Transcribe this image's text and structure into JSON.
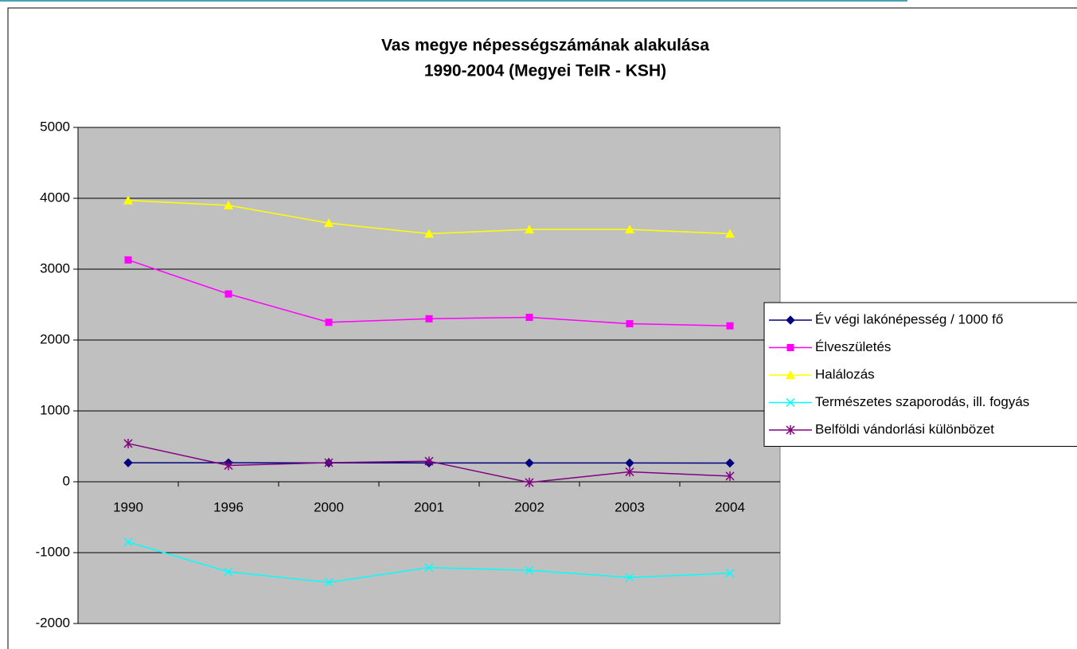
{
  "chart_data": {
    "type": "line",
    "title": [
      "Vas megye népességszámának alakulása",
      "1990-2004 (Megyei TeIR - KSH)"
    ],
    "categories": [
      "1990",
      "1996",
      "2000",
      "2001",
      "2002",
      "2003",
      "2004"
    ],
    "series": [
      {
        "name": "Év végi lakónépesség / 1000 fő",
        "color": "#000080",
        "marker": "diamond",
        "values": [
          268,
          268,
          267,
          266,
          265,
          265,
          264
        ]
      },
      {
        "name": "Élveszületés",
        "color": "#ff00ff",
        "marker": "square",
        "values": [
          3130,
          2650,
          2250,
          2300,
          2320,
          2230,
          2200
        ]
      },
      {
        "name": "Halálozás",
        "color": "#ffff00",
        "marker": "triangle",
        "values": [
          3970,
          3900,
          3650,
          3500,
          3560,
          3560,
          3500
        ]
      },
      {
        "name": "Természetes szaporodás, ill. fogyás",
        "color": "#00ffff",
        "marker": "x",
        "values": [
          -850,
          -1270,
          -1420,
          -1210,
          -1250,
          -1350,
          -1290
        ]
      },
      {
        "name": "Belföldi vándorlási különbözet",
        "color": "#800080",
        "marker": "star",
        "values": [
          540,
          230,
          270,
          290,
          -10,
          140,
          80
        ]
      }
    ],
    "ylim": [
      -2000,
      5000
    ],
    "yticks": [
      -2000,
      -1000,
      0,
      1000,
      2000,
      3000,
      4000,
      5000
    ],
    "grid": true,
    "legend": "right",
    "plot_background": "#c0c0c0"
  }
}
